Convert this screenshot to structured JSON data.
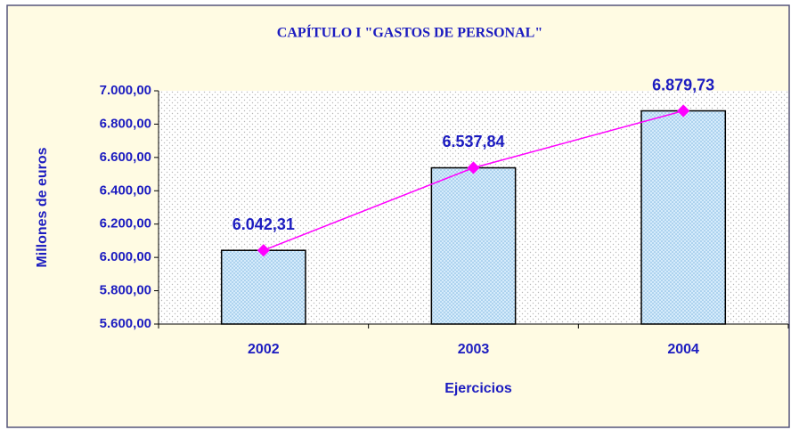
{
  "chart_data": {
    "type": "bar",
    "title": "CAPÍTULO I \"GASTOS DE PERSONAL\"",
    "xlabel": "Ejercicios",
    "ylabel": "Millones de euros",
    "categories": [
      "2002",
      "2003",
      "2004"
    ],
    "values": [
      6042.31,
      6537.84,
      6879.73
    ],
    "value_labels": [
      "6.042,31",
      "6.537,84",
      "6.879,73"
    ],
    "color": "#bfe0f7",
    "line_color": "#ff00ff",
    "ylim": [
      5600,
      7000
    ],
    "yticks": [
      {
        "value": 5600,
        "label": "5.600,00"
      },
      {
        "value": 5800,
        "label": "5.800,00"
      },
      {
        "value": 6000,
        "label": "6.000,00"
      },
      {
        "value": 6200,
        "label": "6.200,00"
      },
      {
        "value": 6400,
        "label": "6.400,00"
      },
      {
        "value": 6600,
        "label": "6.600,00"
      },
      {
        "value": 6800,
        "label": "6.800,00"
      },
      {
        "value": 7000,
        "label": "7.000,00"
      }
    ]
  }
}
